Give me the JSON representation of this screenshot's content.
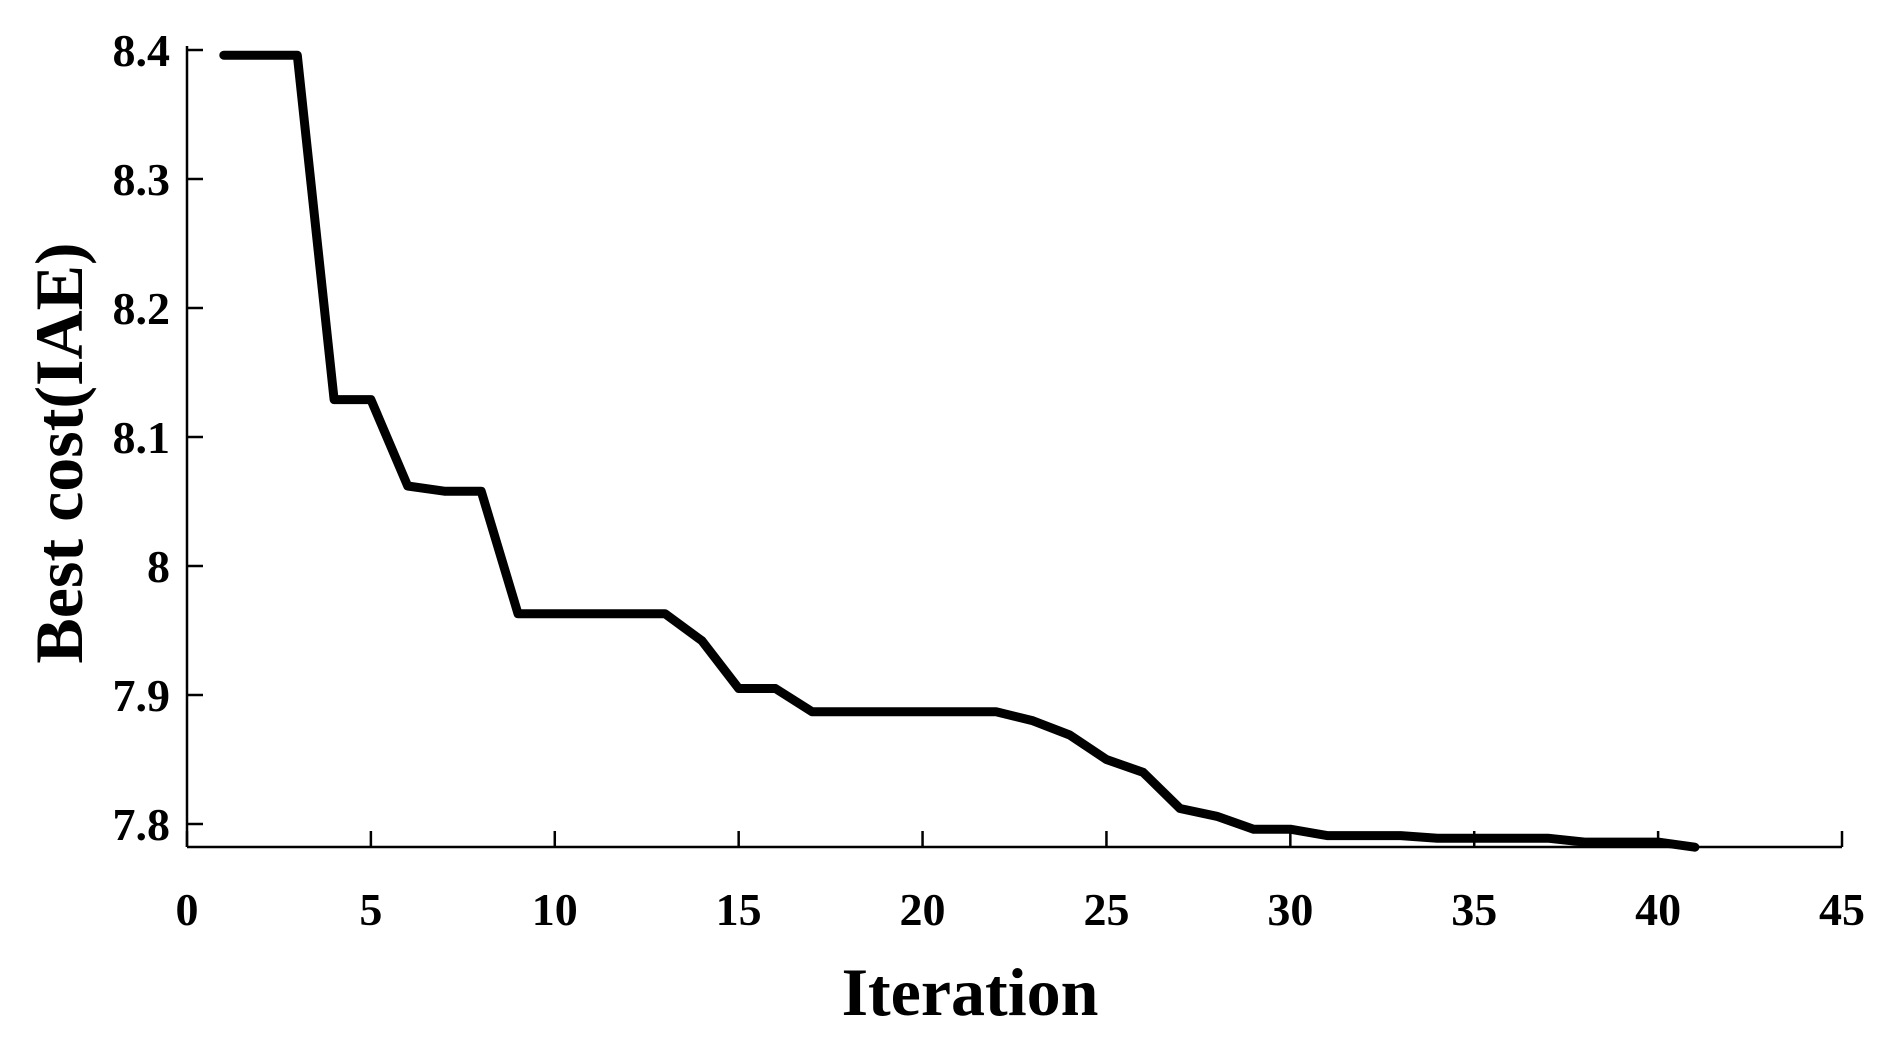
{
  "chart_data": {
    "type": "line",
    "title": "",
    "xlabel": "Iteration",
    "ylabel": "Best cost(IAE)",
    "xlim": [
      0,
      45
    ],
    "ylim": [
      7.78,
      8.4
    ],
    "x_ticks": [
      0,
      5,
      10,
      15,
      20,
      25,
      30,
      35,
      40,
      45
    ],
    "y_ticks": [
      7.8,
      7.9,
      8.0,
      8.1,
      8.2,
      8.3,
      8.4
    ],
    "x_tick_labels": [
      "0",
      "5",
      "10",
      "15",
      "20",
      "25",
      "30",
      "35",
      "40",
      "45"
    ],
    "y_tick_labels": [
      "7.8",
      "7.9",
      "8",
      "8.1",
      "8.2",
      "8.3",
      "8.4"
    ],
    "grid": false,
    "legend": "none",
    "line_color": "#000000",
    "series": [
      {
        "x": [
          1,
          2,
          3,
          4,
          5,
          6,
          7,
          8,
          9,
          10,
          11,
          12,
          13,
          14,
          15,
          16,
          17,
          18,
          19,
          20,
          21,
          22,
          23,
          24,
          25,
          26,
          27,
          28,
          29,
          30,
          31,
          32,
          33,
          34,
          35,
          36,
          37,
          38,
          39,
          40,
          41
        ],
        "y": [
          8.396,
          8.396,
          8.396,
          8.129,
          8.129,
          8.062,
          8.058,
          8.058,
          7.963,
          7.963,
          7.963,
          7.963,
          7.963,
          7.942,
          7.905,
          7.905,
          7.887,
          7.887,
          7.887,
          7.887,
          7.887,
          7.887,
          7.88,
          7.869,
          7.85,
          7.84,
          7.812,
          7.806,
          7.796,
          7.796,
          7.791,
          7.791,
          7.791,
          7.789,
          7.789,
          7.789,
          7.789,
          7.786,
          7.786,
          7.786,
          7.782
        ]
      }
    ]
  }
}
